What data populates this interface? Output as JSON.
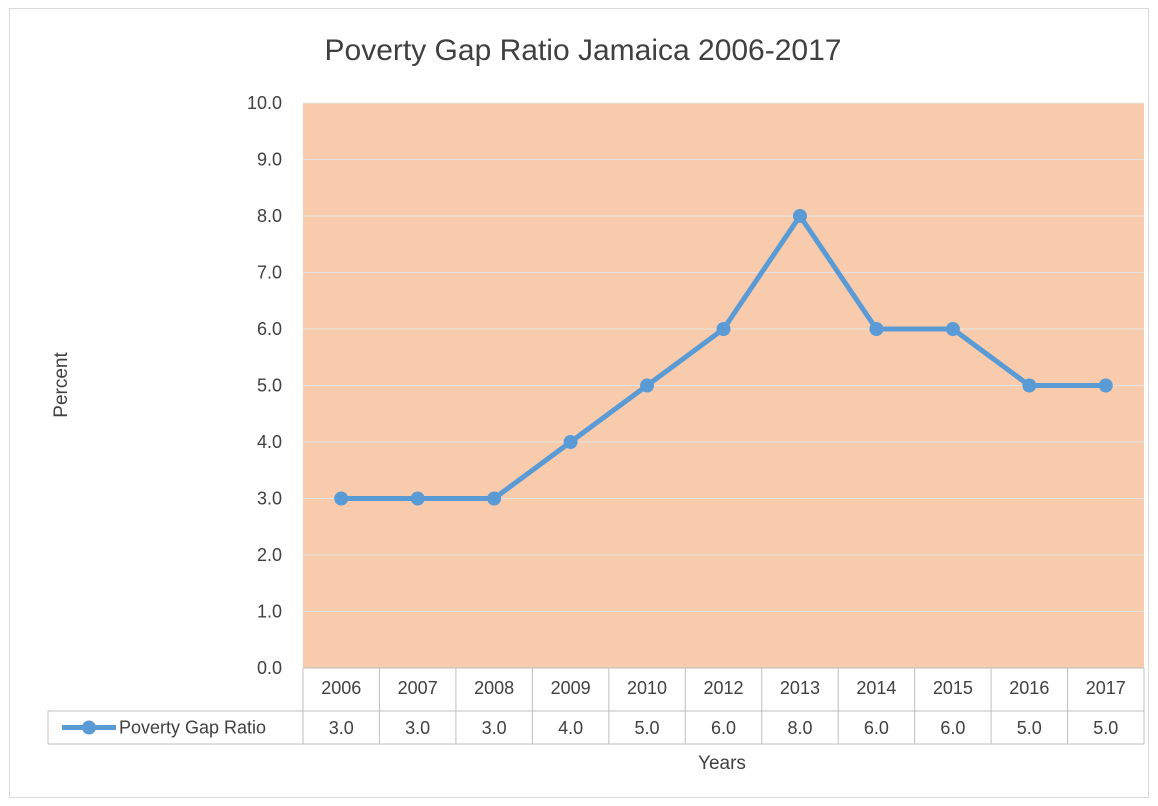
{
  "chart_data": {
    "type": "line",
    "title": "Poverty Gap Ratio Jamaica 2006-2017",
    "xlabel": "Years",
    "ylabel": "Percent",
    "categories": [
      "2006",
      "2007",
      "2008",
      "2009",
      "2010",
      "2012",
      "2013",
      "2014",
      "2015",
      "2016",
      "2017"
    ],
    "series": [
      {
        "name": "Poverty Gap Ratio",
        "values": [
          3.0,
          3.0,
          3.0,
          4.0,
          5.0,
          6.0,
          8.0,
          6.0,
          6.0,
          5.0,
          5.0
        ],
        "value_labels": [
          "3.0",
          "3.0",
          "3.0",
          "4.0",
          "5.0",
          "6.0",
          "8.0",
          "6.0",
          "6.0",
          "5.0",
          "5.0"
        ],
        "color": "#5b9bd5"
      }
    ],
    "ylim": [
      0,
      10
    ],
    "yticks": [
      "0.0",
      "1.0",
      "2.0",
      "3.0",
      "4.0",
      "5.0",
      "6.0",
      "7.0",
      "8.0",
      "9.0",
      "10.0"
    ],
    "plot_background": "#f8cbad",
    "grid": true,
    "legend": "data-table-left"
  }
}
